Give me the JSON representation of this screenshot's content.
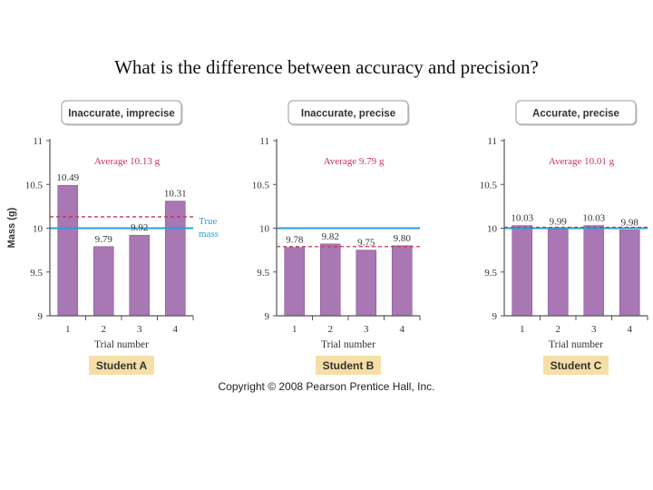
{
  "title": "What is the difference between accuracy and precision?",
  "copyright": "Copyright © 2008 Pearson Prentice Hall, Inc.",
  "true_mass_label_line1": "True",
  "true_mass_label_line2": "mass",
  "colors": {
    "bar": "#a877b4",
    "bar_edge": "#8a5a98",
    "true_line": "#2c9fd6",
    "average": "#c8325a",
    "student_box": "#f5dfa6",
    "header_box_border": "#9a9a9a"
  },
  "chart_data": [
    {
      "type": "bar",
      "title": "Inaccurate, imprecise",
      "footer": "Student A",
      "categories": [
        "1",
        "2",
        "3",
        "4"
      ],
      "values": [
        10.49,
        9.79,
        9.92,
        10.31
      ],
      "value_labels": [
        "10.49",
        "9.79",
        "9.92",
        "10.31"
      ],
      "average": 10.13,
      "average_label": "Average 10.13 g",
      "true_value": 10.0,
      "xlabel": "Trial number",
      "ylabel": "Mass (g)",
      "ylim": [
        9,
        11
      ],
      "yticks": [
        9,
        9.5,
        10,
        10.5,
        11
      ],
      "ytick_labels": [
        "9",
        "9.5",
        "10",
        "10.5",
        "11"
      ]
    },
    {
      "type": "bar",
      "title": "Inaccurate, precise",
      "footer": "Student B",
      "categories": [
        "1",
        "2",
        "3",
        "4"
      ],
      "values": [
        9.78,
        9.82,
        9.75,
        9.8
      ],
      "value_labels": [
        "9.78",
        "9.82",
        "9.75",
        "9.80"
      ],
      "average": 9.79,
      "average_label": "Average 9.79 g",
      "true_value": 10.0,
      "xlabel": "Trial number",
      "ylabel": "",
      "ylim": [
        9,
        11
      ],
      "yticks": [
        9,
        9.5,
        10,
        10.5,
        11
      ],
      "ytick_labels": [
        "9",
        "9.5",
        "10",
        "10.5",
        "11"
      ]
    },
    {
      "type": "bar",
      "title": "Accurate, precise",
      "footer": "Student C",
      "categories": [
        "1",
        "2",
        "3",
        "4"
      ],
      "values": [
        10.03,
        9.99,
        10.03,
        9.98
      ],
      "value_labels": [
        "10.03",
        "9.99",
        "10.03",
        "9.98"
      ],
      "average": 10.01,
      "average_label": "Average 10.01 g",
      "true_value": 10.0,
      "xlabel": "Trial number",
      "ylabel": "",
      "ylim": [
        9,
        11
      ],
      "yticks": [
        9,
        9.5,
        10,
        10.5,
        11
      ],
      "ytick_labels": [
        "9",
        "9.5",
        "10",
        "10.5",
        "11"
      ]
    }
  ]
}
